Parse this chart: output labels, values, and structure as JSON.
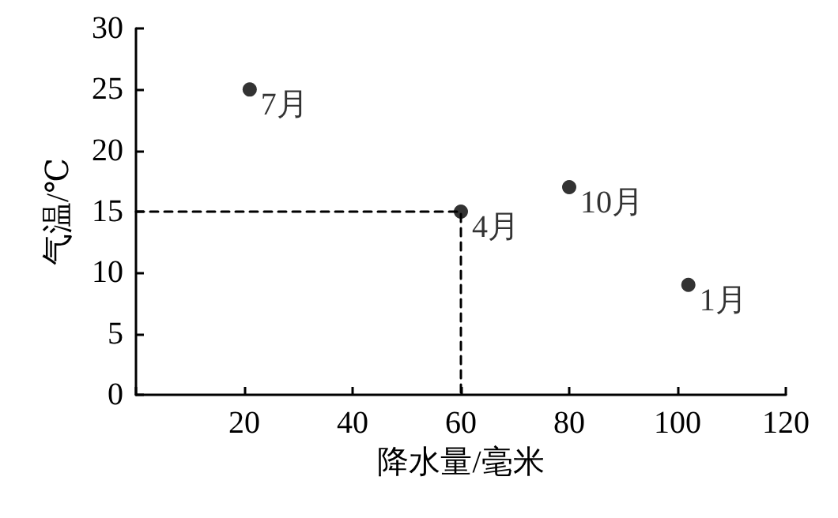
{
  "chart_data": {
    "type": "scatter",
    "xlabel": "降水量/毫米",
    "ylabel": "气温/℃",
    "xlim": [
      0,
      120
    ],
    "xticks": [
      {
        "value": 0,
        "label": null
      },
      20,
      40,
      60,
      80,
      100,
      120
    ],
    "ylim": [
      0,
      30
    ],
    "yticks": [
      0,
      5,
      10,
      15,
      20,
      25,
      30
    ],
    "grid": false,
    "series": [
      {
        "color": "#000000",
        "marker": "circle",
        "x": [
          21,
          60,
          80,
          102
        ],
        "values": [
          25,
          15,
          17,
          9
        ]
      },
      {
        "type": "line",
        "color": "#000000",
        "marker": "none",
        "line_style": "dashed",
        "x": [
          0,
          60,
          60
        ],
        "values": [
          15,
          15,
          0
        ]
      }
    ],
    "annotations": [
      {
        "text": "7月",
        "x": 21,
        "y": 25
      },
      {
        "text": "4月",
        "x": 60,
        "y": 15
      },
      {
        "text": "10月",
        "x": 80,
        "y": 17
      },
      {
        "text": "1月",
        "x": 102,
        "y": 9
      }
    ]
  }
}
